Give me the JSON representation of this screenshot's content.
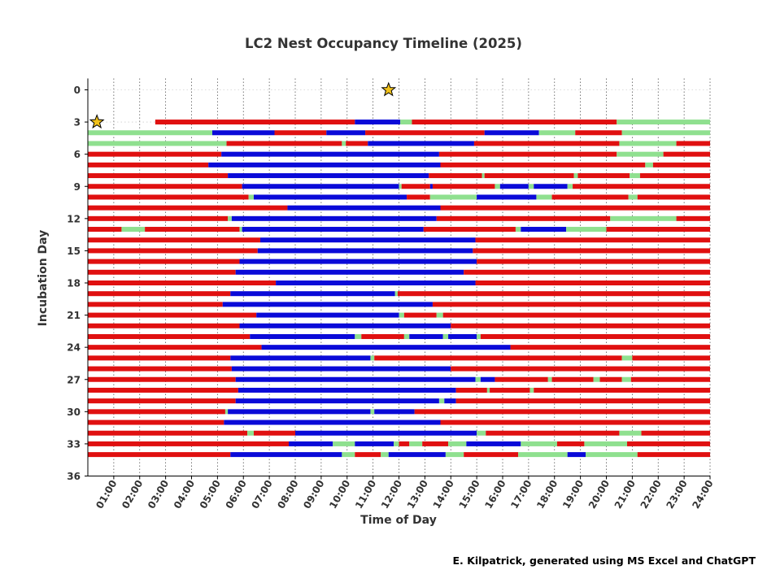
{
  "chart_data": {
    "type": "timeline",
    "title": "LC2 Nest Occupancy Timeline (2025)",
    "xlabel": "Time of Day",
    "ylabel": "Incubation Day",
    "xlim": [
      0,
      24
    ],
    "ylim": [
      0,
      36
    ],
    "x_ticks": [
      "01:00",
      "02:00",
      "03:00",
      "04:00",
      "05:00",
      "06:00",
      "07:00",
      "08:00",
      "09:00",
      "10:00",
      "11:00",
      "12:00",
      "13:00",
      "14:00",
      "15:00",
      "16:00",
      "17:00",
      "18:00",
      "19:00",
      "20:00",
      "21:00",
      "22:00",
      "23:00",
      "24:00"
    ],
    "y_ticks": [
      0,
      3,
      6,
      9,
      12,
      15,
      18,
      21,
      24,
      27,
      30,
      33,
      36
    ],
    "y_inverted": true,
    "grid": "vertical dotted",
    "colors": {
      "red": "#e01010",
      "blue": "#0a0ad8",
      "green": "#8fe08f",
      "star": "#f2c21a"
    },
    "stars": [
      {
        "day": 0,
        "hour": 11.6
      },
      {
        "day": 3,
        "hour": 0.35
      }
    ],
    "rows": [
      {
        "day": 3,
        "segments": [
          [
            "red",
            2.6,
            10.3
          ],
          [
            "blue",
            10.3,
            12.05
          ],
          [
            "green",
            12.05,
            12.5
          ],
          [
            "red",
            12.5,
            20.4
          ],
          [
            "green",
            20.4,
            24
          ]
        ]
      },
      {
        "day": 4,
        "segments": [
          [
            "green",
            0,
            4.8
          ],
          [
            "blue",
            4.8,
            7.2
          ],
          [
            "red",
            7.2,
            9.2
          ],
          [
            "blue",
            9.2,
            10.7
          ],
          [
            "red",
            10.7,
            15.3
          ],
          [
            "blue",
            15.3,
            17.4
          ],
          [
            "green",
            17.4,
            18.8
          ],
          [
            "red",
            18.8,
            20.6
          ],
          [
            "green",
            20.6,
            24
          ]
        ]
      },
      {
        "day": 5,
        "segments": [
          [
            "green",
            0,
            5.35
          ],
          [
            "red",
            5.35,
            9.8
          ],
          [
            "green",
            9.8,
            9.95
          ],
          [
            "red",
            9.95,
            10.8
          ],
          [
            "blue",
            10.8,
            14.9
          ],
          [
            "red",
            14.9,
            20.5
          ],
          [
            "green",
            20.5,
            22.7
          ],
          [
            "red",
            22.7,
            24
          ]
        ]
      },
      {
        "day": 6,
        "segments": [
          [
            "red",
            0,
            5.15
          ],
          [
            "blue",
            5.15,
            13.55
          ],
          [
            "red",
            13.55,
            20.4
          ],
          [
            "green",
            20.4,
            22.2
          ],
          [
            "red",
            22.2,
            24
          ]
        ]
      },
      {
        "day": 7,
        "segments": [
          [
            "red",
            0,
            4.65
          ],
          [
            "blue",
            4.65,
            13.6
          ],
          [
            "red",
            13.6,
            21.5
          ],
          [
            "green",
            21.5,
            21.8
          ],
          [
            "red",
            21.8,
            24
          ]
        ]
      },
      {
        "day": 8,
        "segments": [
          [
            "red",
            0,
            5.4
          ],
          [
            "blue",
            5.4,
            13.15
          ],
          [
            "red",
            13.15,
            15.2
          ],
          [
            "green",
            15.2,
            15.3
          ],
          [
            "red",
            15.3,
            18.75
          ],
          [
            "green",
            18.75,
            18.9
          ],
          [
            "red",
            18.9,
            20.9
          ],
          [
            "green",
            20.9,
            21.3
          ],
          [
            "red",
            21.3,
            24
          ]
        ]
      },
      {
        "day": 9,
        "segments": [
          [
            "red",
            0,
            5.95
          ],
          [
            "blue",
            5.95,
            12.0
          ],
          [
            "green",
            12.0,
            12.1
          ],
          [
            "red",
            12.1,
            13.2
          ],
          [
            "blue",
            13.2,
            13.3
          ],
          [
            "red",
            13.3,
            15.7
          ],
          [
            "green",
            15.7,
            15.9
          ],
          [
            "blue",
            15.9,
            17.0
          ],
          [
            "green",
            17.0,
            17.2
          ],
          [
            "blue",
            17.2,
            18.5
          ],
          [
            "green",
            18.5,
            18.7
          ],
          [
            "red",
            18.7,
            24
          ]
        ]
      },
      {
        "day": 10,
        "segments": [
          [
            "red",
            0,
            6.2
          ],
          [
            "green",
            6.2,
            6.4
          ],
          [
            "blue",
            6.4,
            12.3
          ],
          [
            "red",
            12.3,
            13.2
          ],
          [
            "green",
            13.2,
            15.0
          ],
          [
            "blue",
            15.0,
            17.3
          ],
          [
            "green",
            17.3,
            17.9
          ],
          [
            "red",
            17.9,
            20.85
          ],
          [
            "green",
            20.85,
            21.2
          ],
          [
            "red",
            21.2,
            24
          ]
        ]
      },
      {
        "day": 11,
        "segments": [
          [
            "red",
            0,
            7.7
          ],
          [
            "blue",
            7.7,
            13.6
          ],
          [
            "red",
            13.6,
            24
          ]
        ]
      },
      {
        "day": 12,
        "segments": [
          [
            "red",
            0,
            5.4
          ],
          [
            "green",
            5.4,
            5.55
          ],
          [
            "blue",
            5.55,
            13.45
          ],
          [
            "red",
            13.45,
            20.15
          ],
          [
            "green",
            20.15,
            22.7
          ],
          [
            "red",
            22.7,
            24
          ]
        ]
      },
      {
        "day": 13,
        "segments": [
          [
            "red",
            0,
            1.3
          ],
          [
            "green",
            1.3,
            2.2
          ],
          [
            "red",
            2.2,
            5.85
          ],
          [
            "green",
            5.85,
            5.95
          ],
          [
            "blue",
            5.95,
            12.95
          ],
          [
            "red",
            12.95,
            16.5
          ],
          [
            "green",
            16.5,
            16.7
          ],
          [
            "blue",
            16.7,
            18.45
          ],
          [
            "green",
            18.45,
            20.0
          ],
          [
            "red",
            20.0,
            24
          ]
        ]
      },
      {
        "day": 14,
        "segments": [
          [
            "red",
            0,
            6.65
          ],
          [
            "blue",
            6.65,
            14.95
          ],
          [
            "red",
            14.95,
            24
          ]
        ]
      },
      {
        "day": 15,
        "segments": [
          [
            "red",
            0,
            6.55
          ],
          [
            "blue",
            6.55,
            14.85
          ],
          [
            "red",
            14.85,
            24
          ]
        ]
      },
      {
        "day": 16,
        "segments": [
          [
            "red",
            0,
            5.85
          ],
          [
            "blue",
            5.85,
            15.0
          ],
          [
            "red",
            15.0,
            24
          ]
        ]
      },
      {
        "day": 17,
        "segments": [
          [
            "red",
            0,
            5.7
          ],
          [
            "blue",
            5.7,
            14.5
          ],
          [
            "red",
            14.5,
            24
          ]
        ]
      },
      {
        "day": 18,
        "segments": [
          [
            "red",
            0,
            7.25
          ],
          [
            "blue",
            7.25,
            14.95
          ],
          [
            "red",
            14.95,
            24
          ]
        ]
      },
      {
        "day": 19,
        "segments": [
          [
            "red",
            0,
            5.5
          ],
          [
            "blue",
            5.5,
            11.85
          ],
          [
            "green",
            11.85,
            11.95
          ],
          [
            "red",
            11.95,
            24
          ]
        ]
      },
      {
        "day": 20,
        "segments": [
          [
            "red",
            0,
            5.2
          ],
          [
            "blue",
            5.2,
            13.3
          ],
          [
            "red",
            13.3,
            24
          ]
        ]
      },
      {
        "day": 21,
        "segments": [
          [
            "red",
            0,
            6.5
          ],
          [
            "blue",
            6.5,
            12.0
          ],
          [
            "green",
            12.0,
            12.2
          ],
          [
            "red",
            12.2,
            13.45
          ],
          [
            "green",
            13.45,
            13.7
          ],
          [
            "red",
            13.7,
            24
          ]
        ]
      },
      {
        "day": 22,
        "segments": [
          [
            "red",
            0,
            5.85
          ],
          [
            "blue",
            5.85,
            14.0
          ],
          [
            "red",
            14.0,
            24
          ]
        ]
      },
      {
        "day": 23,
        "segments": [
          [
            "red",
            0,
            6.25
          ],
          [
            "blue",
            6.25,
            10.3
          ],
          [
            "green",
            10.3,
            10.55
          ],
          [
            "red",
            10.55,
            12.2
          ],
          [
            "green",
            12.2,
            12.4
          ],
          [
            "blue",
            12.4,
            13.7
          ],
          [
            "green",
            13.7,
            13.9
          ],
          [
            "blue",
            13.9,
            15.0
          ],
          [
            "green",
            15.0,
            15.15
          ],
          [
            "red",
            15.15,
            24
          ]
        ]
      },
      {
        "day": 24,
        "segments": [
          [
            "red",
            0,
            6.7
          ],
          [
            "blue",
            6.7,
            16.3
          ],
          [
            "red",
            16.3,
            24
          ]
        ]
      },
      {
        "day": 25,
        "segments": [
          [
            "red",
            0,
            5.5
          ],
          [
            "blue",
            5.5,
            10.9
          ],
          [
            "green",
            10.9,
            11.05
          ],
          [
            "red",
            11.05,
            20.6
          ],
          [
            "green",
            20.6,
            21.0
          ],
          [
            "red",
            21.0,
            24
          ]
        ]
      },
      {
        "day": 26,
        "segments": [
          [
            "red",
            0,
            5.55
          ],
          [
            "blue",
            5.55,
            14.0
          ],
          [
            "red",
            14.0,
            24
          ]
        ]
      },
      {
        "day": 27,
        "segments": [
          [
            "red",
            0,
            5.7
          ],
          [
            "blue",
            5.7,
            14.95
          ],
          [
            "green",
            14.95,
            15.15
          ],
          [
            "blue",
            15.15,
            15.7
          ],
          [
            "red",
            15.7,
            17.75
          ],
          [
            "green",
            17.75,
            17.9
          ],
          [
            "red",
            17.9,
            19.5
          ],
          [
            "green",
            19.5,
            19.75
          ],
          [
            "red",
            19.75,
            20.6
          ],
          [
            "green",
            20.6,
            20.95
          ],
          [
            "red",
            20.95,
            24
          ]
        ]
      },
      {
        "day": 28,
        "segments": [
          [
            "red",
            0,
            5.8
          ],
          [
            "blue",
            5.8,
            14.2
          ],
          [
            "red",
            14.2,
            15.4
          ],
          [
            "green",
            15.4,
            15.5
          ],
          [
            "red",
            15.5,
            17.05
          ],
          [
            "green",
            17.05,
            17.2
          ],
          [
            "red",
            17.2,
            24
          ]
        ]
      },
      {
        "day": 29,
        "segments": [
          [
            "red",
            0,
            5.7
          ],
          [
            "blue",
            5.7,
            13.55
          ],
          [
            "green",
            13.55,
            13.75
          ],
          [
            "blue",
            13.75,
            14.2
          ],
          [
            "red",
            14.2,
            24
          ]
        ]
      },
      {
        "day": 30,
        "segments": [
          [
            "red",
            0,
            5.3
          ],
          [
            "green",
            5.3,
            5.4
          ],
          [
            "blue",
            5.4,
            10.9
          ],
          [
            "green",
            10.9,
            11.05
          ],
          [
            "blue",
            11.05,
            12.6
          ],
          [
            "red",
            12.6,
            24
          ]
        ]
      },
      {
        "day": 31,
        "segments": [
          [
            "red",
            0,
            5.25
          ],
          [
            "blue",
            5.25,
            13.6
          ],
          [
            "red",
            13.6,
            24
          ]
        ]
      },
      {
        "day": 32,
        "segments": [
          [
            "red",
            0,
            6.15
          ],
          [
            "green",
            6.15,
            6.4
          ],
          [
            "red",
            6.4,
            8.0
          ],
          [
            "blue",
            8.0,
            15.0
          ],
          [
            "green",
            15.0,
            15.35
          ],
          [
            "red",
            15.35,
            20.5
          ],
          [
            "green",
            20.5,
            21.35
          ],
          [
            "red",
            21.35,
            24
          ]
        ]
      },
      {
        "day": 33,
        "segments": [
          [
            "red",
            0,
            7.75
          ],
          [
            "blue",
            7.75,
            9.45
          ],
          [
            "green",
            9.45,
            10.3
          ],
          [
            "blue",
            10.3,
            11.8
          ],
          [
            "green",
            11.8,
            12.0
          ],
          [
            "red",
            12.0,
            12.4
          ],
          [
            "green",
            12.4,
            12.9
          ],
          [
            "red",
            12.9,
            13.9
          ],
          [
            "green",
            13.9,
            14.6
          ],
          [
            "blue",
            14.6,
            16.7
          ],
          [
            "green",
            16.7,
            18.1
          ],
          [
            "red",
            18.1,
            19.15
          ],
          [
            "green",
            19.15,
            20.8
          ],
          [
            "red",
            20.8,
            24
          ]
        ]
      },
      {
        "day": 34,
        "segments": [
          [
            "red",
            0,
            5.5
          ],
          [
            "blue",
            5.5,
            9.8
          ],
          [
            "green",
            9.8,
            10.3
          ],
          [
            "red",
            10.3,
            11.3
          ],
          [
            "green",
            11.3,
            11.6
          ],
          [
            "blue",
            11.6,
            13.8
          ],
          [
            "green",
            13.8,
            14.5
          ],
          [
            "red",
            14.5,
            16.6
          ],
          [
            "green",
            16.6,
            18.5
          ],
          [
            "blue",
            18.5,
            19.2
          ],
          [
            "green",
            19.2,
            21.2
          ],
          [
            "red",
            21.2,
            24
          ]
        ]
      }
    ]
  },
  "credit": "E. Kilpatrick, generated using MS Excel and ChatGPT"
}
